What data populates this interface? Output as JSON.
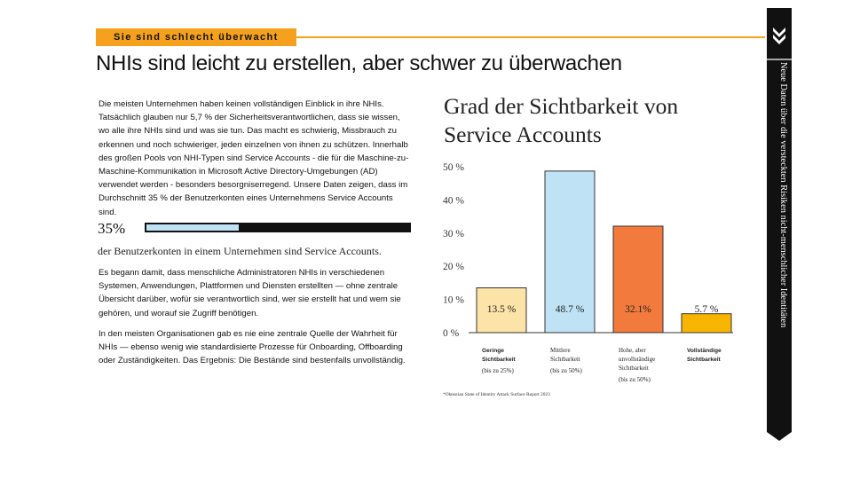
{
  "section_tag": "Sie sind schlecht überwacht",
  "headline": "NHIs sind leicht zu erstellen, aber schwer zu überwachen",
  "paragraphs": [
    "Die meisten Unternehmen haben keinen vollständigen Einblick in ihre NHIs. Tatsächlich glauben nur 5,7 % der Sicherheitsverantwortlichen, dass sie wissen, wo alle ihre NHIs sind und was sie tun. Das macht es schwierig, Missbrauch zu erkennen und noch schwieriger, jeden einzelnen von ihnen zu schützen. Innerhalb des großen Pools von NHI-Typen sind Service Accounts - die für die Maschine-zu-Maschine-Kommunikation in Microsoft Active Directory-Umgebungen (AD) verwendet werden - besonders besorgniserregend. Unsere Daten zeigen, dass im Durchschnitt 35 % der Benutzerkonten eines Unternehmens Service Accounts sind.",
    "Es begann damit, dass menschliche Administratoren NHIs in verschiedenen Systemen, Anwendungen, Plattformen und Diensten erstellten — ohne zentrale Übersicht darüber, wofür sie verantwortlich sind, wer sie erstellt hat und wem sie gehören, und worauf sie Zugriff benötigen.",
    "In den meisten Organisationen gab es nie eine zentrale Quelle der Wahrheit für NHIs — ebenso wenig wie standardisierte Prozesse für Onboarding, Offboarding oder Zuständigkeiten. Das Ergebnis: Die Bestände sind bestenfalls unvollständig."
  ],
  "stat": {
    "value_label": "35%",
    "fraction": 0.35,
    "caption": "der Benutzerkonten in einem Unternehmen sind Service Accounts.",
    "bar_fill_color": "#bfe3f4"
  },
  "chart_data": {
    "type": "bar",
    "title": "Grad der Sichtbarkeit von Service Accounts",
    "ylim": [
      0,
      50
    ],
    "yticks": [
      "0 %",
      "10 %",
      "20 %",
      "30 %",
      "40 %",
      "50 %"
    ],
    "grid": false,
    "categories": [
      {
        "name": "Geringe Sichtbarkeit",
        "sub": "(bis zu 25%)",
        "bold": true
      },
      {
        "name": "Mittlere Sichtbarkeit",
        "sub": "(bis zu 50%)",
        "bold": false
      },
      {
        "name": "Hohe, aber unvollständige Sichtbarkeit",
        "sub": "(bis zu 50%)",
        "bold": false
      },
      {
        "name": "Vollständige Sichtbarkeit",
        "sub": "",
        "bold": true
      }
    ],
    "values": [
      13.5,
      48.7,
      32.1,
      5.7
    ],
    "value_labels": [
      "13.5 %",
      "48.7 %",
      "32.1%",
      "5.7 %"
    ],
    "colors": [
      "#fce3a8",
      "#bfe3f4",
      "#f27a3c",
      "#f8b500"
    ]
  },
  "chart_source": "*Oktestian State of Identity Attack Surface Report 2023",
  "sidebar": {
    "vertical_text": "Neue Daten über die versteckten Risiken nicht-menschlicher Identitäten",
    "icon": "double-chevron-down-icon",
    "bg_color": "#111111"
  },
  "colors": {
    "accent": "#f5a11e"
  }
}
